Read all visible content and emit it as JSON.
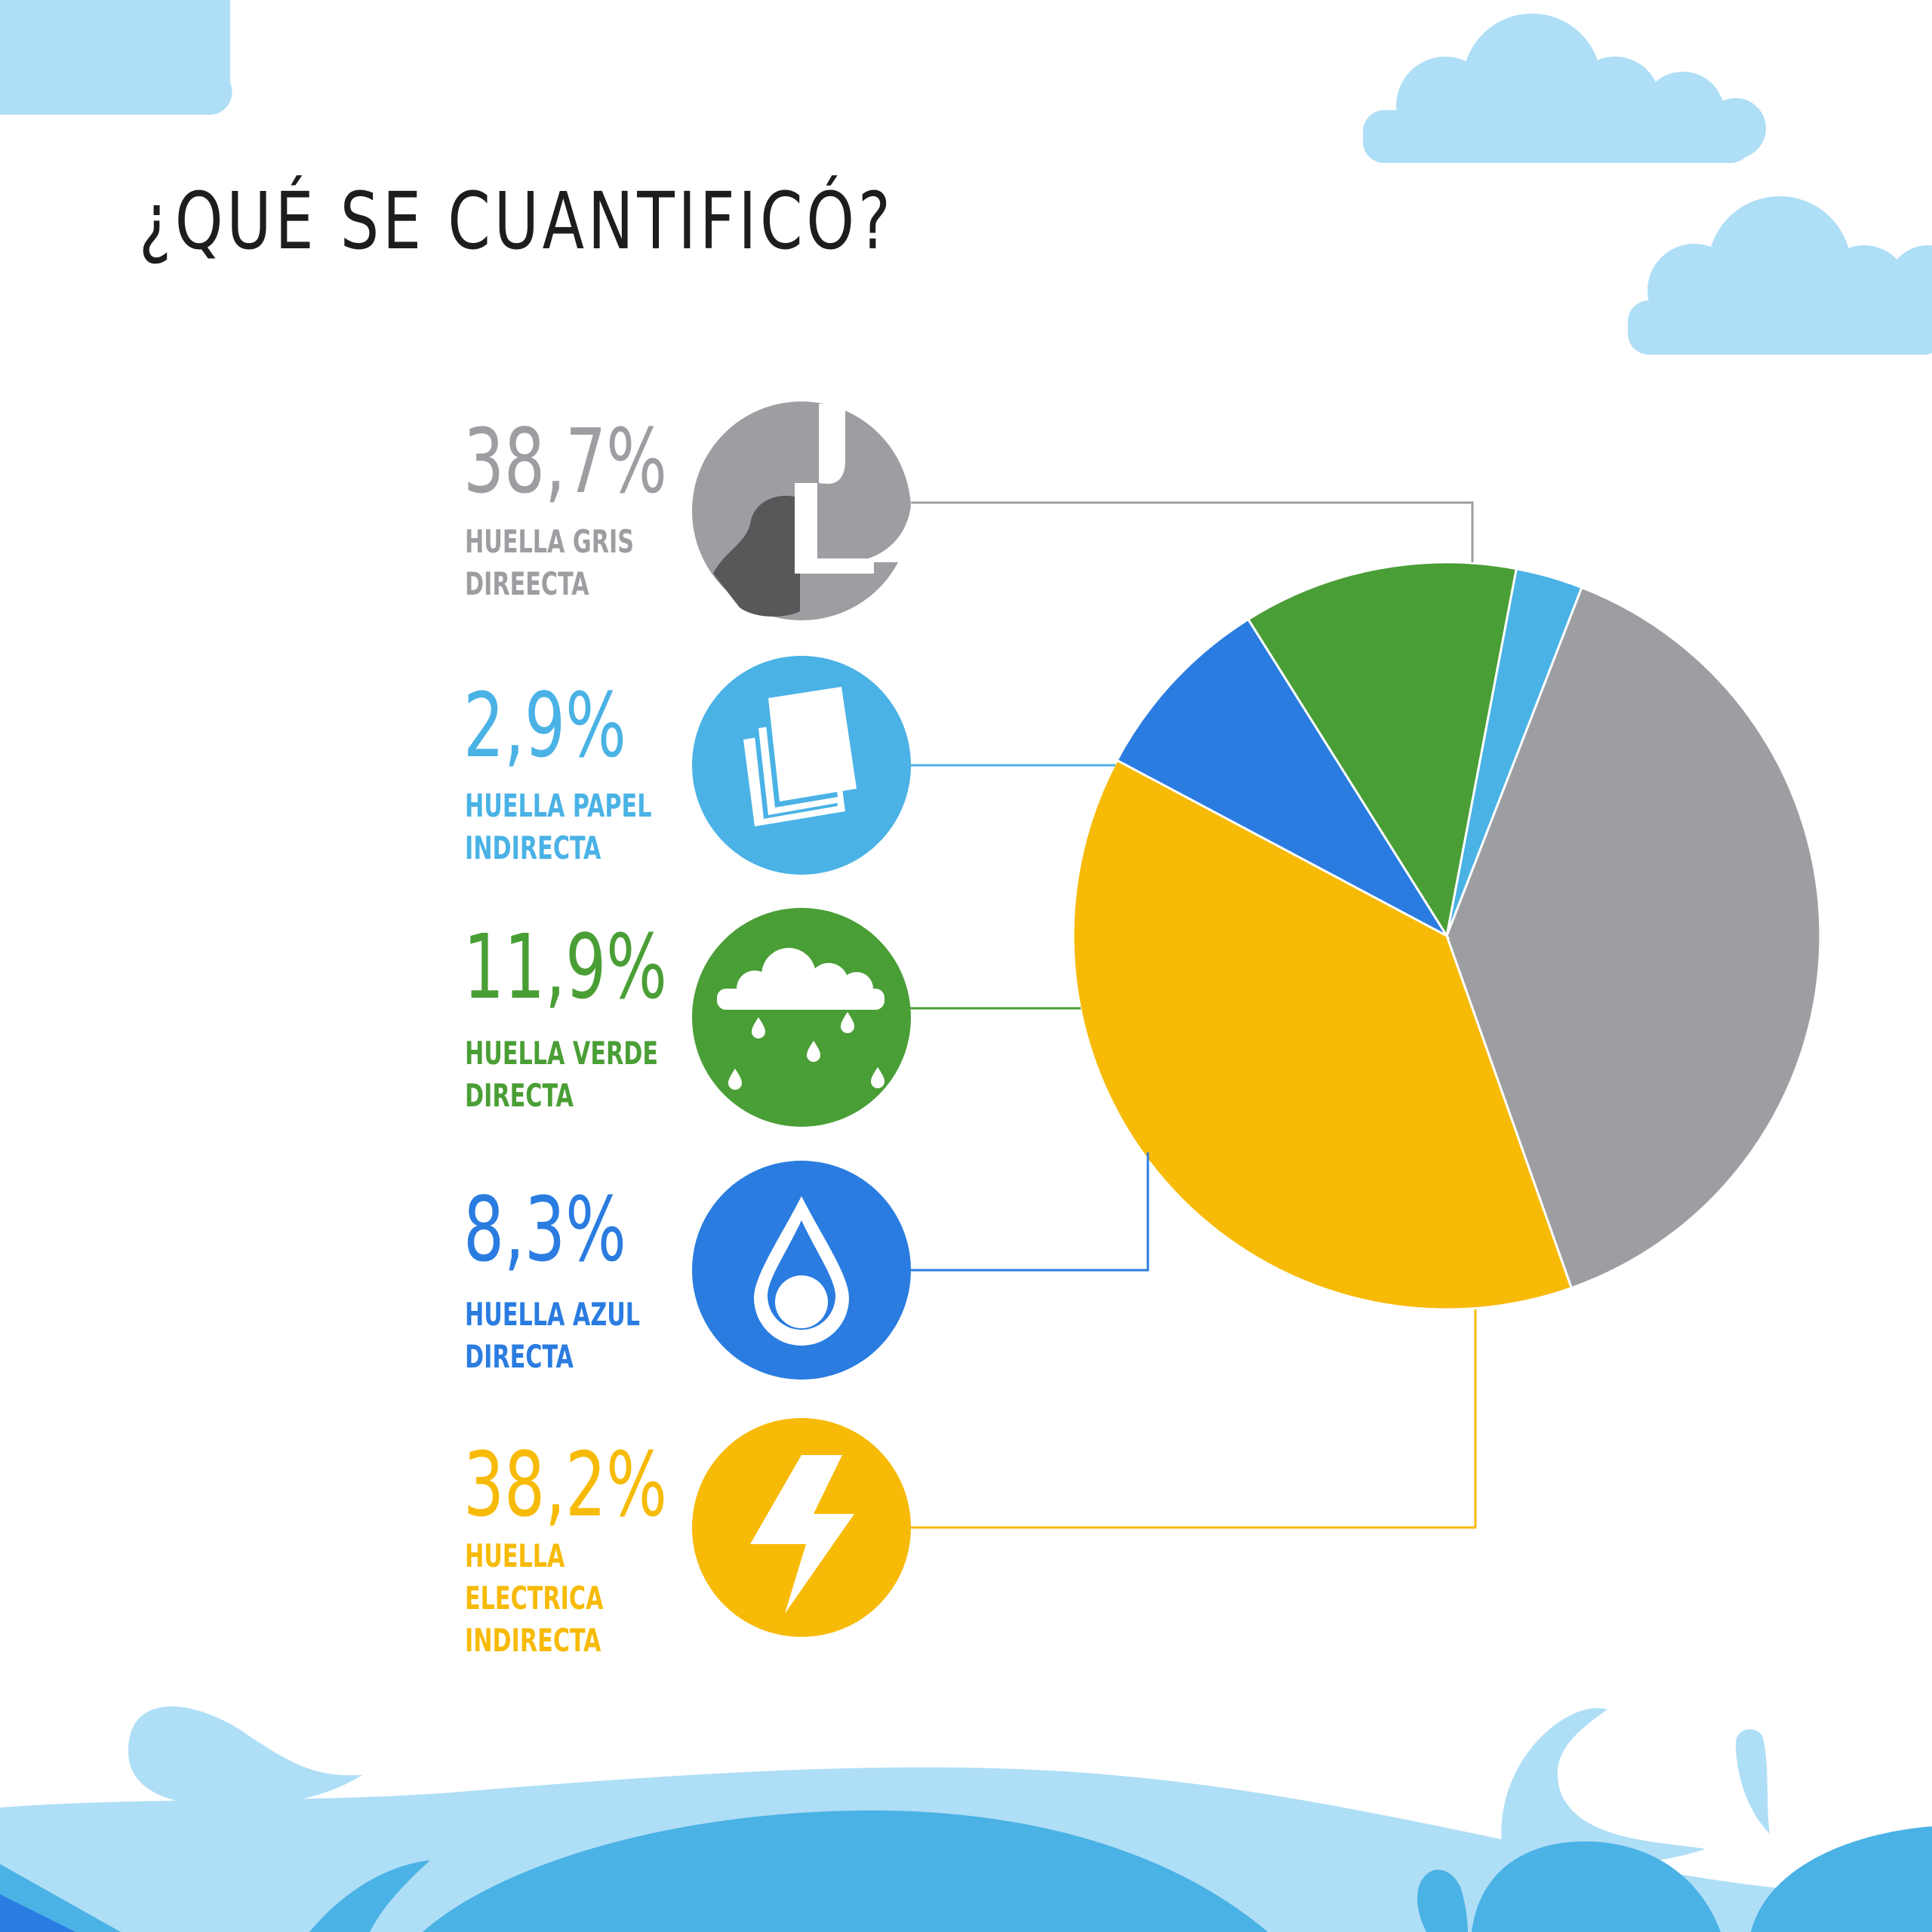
{
  "page": {
    "title": "¿QUÉ SE CUANTIFICÓ?"
  },
  "colors": {
    "gris": "#9d9ea1",
    "papel": "#4ab2e5",
    "verde": "#4a9e36",
    "azul": "#2a7ce0",
    "electrica": "#f7ba07",
    "cloud": "#afdef7",
    "water_light": "#afdef7",
    "water_mid": "#4ab2e5"
  },
  "legend": [
    {
      "pct": "38,7%",
      "label": "HUELLA GRIS\nDIREECTA",
      "icon": "smokestack-icon",
      "color": "#9d9ea1"
    },
    {
      "pct": "2,9%",
      "label": "HUELLA PAPEL\nINDIRECTA",
      "icon": "paper-sheets-icon",
      "color": "#4ab2e5"
    },
    {
      "pct": "11,9%",
      "label": "HUELLA VERDE\nDIRECTA",
      "icon": "rain-cloud-icon",
      "color": "#4a9e36"
    },
    {
      "pct": "8,3%",
      "label": "HUELLA AZUL\nDIRECTA",
      "icon": "water-drop-icon",
      "color": "#2a7ce0"
    },
    {
      "pct": "38,2%",
      "label": "HUELLA\nELECTRICA\nINDIRECTA",
      "icon": "lightning-bolt-icon",
      "color": "#f7ba07"
    }
  ],
  "chart_data": {
    "type": "pie",
    "title": "¿QUÉ SE CUANTIFICÓ?",
    "categories": [
      "HUELLA GRIS DIREECTA",
      "HUELLA PAPEL INDIRECTA",
      "HUELLA VERDE DIRECTA",
      "HUELLA AZUL DIRECTA",
      "HUELLA ELECTRICA INDIRECTA"
    ],
    "values": [
      38.7,
      2.9,
      11.9,
      8.3,
      38.2
    ],
    "unit": "%",
    "colors": [
      "#9d9ea1",
      "#4ab2e5",
      "#4a9e36",
      "#2a7ce0",
      "#f7ba07"
    ],
    "start_angle_deg": -70.5,
    "direction": "counterclockwise-from-top-right"
  }
}
